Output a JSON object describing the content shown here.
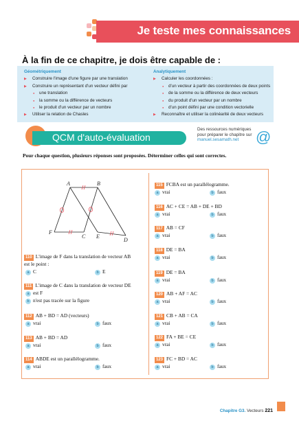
{
  "header": {
    "title": "Je teste mes connaissances",
    "accent": "#e8505b"
  },
  "goals": {
    "title": "À la fin de ce chapitre, je dois être capable de :",
    "col1": {
      "heading": "Géométriquement",
      "items": [
        {
          "text": "Construire l'image d'une figure par une translation",
          "level": 1
        },
        {
          "text": "Construire un représentant d'un vecteur défini par",
          "level": 1
        },
        {
          "text": "une translation",
          "level": 2
        },
        {
          "text": "la somme ou la différence de vecteurs",
          "level": 2
        },
        {
          "text": "le produit d'un vecteur par un nombre",
          "level": 2
        },
        {
          "text": "Utiliser la relation de Chasles",
          "level": 1
        }
      ]
    },
    "col2": {
      "heading": "Analytiquement",
      "items": [
        {
          "text": "Calculer les coordonnées :",
          "level": 1
        },
        {
          "text": "d'un vecteur à partir des coordonnées de deux points",
          "level": 2
        },
        {
          "text": "de la somme ou la différence de deux vecteurs",
          "level": 2
        },
        {
          "text": "du produit d'un vecteur par un nombre",
          "level": 2
        },
        {
          "text": "d'un point défini par une condition vectorielle",
          "level": 2
        },
        {
          "text": "Reconnaître et utiliser la colinéarité de deux vecteurs",
          "level": 1
        }
      ]
    }
  },
  "qcm": {
    "title": "QCM d'auto-évaluation",
    "color": "#20b2a0"
  },
  "resources": {
    "line1": "Des ressources numériques",
    "line2": "pour préparer le chapitre sur",
    "url": "manuel.sesamath.net",
    "icon": "at-icon"
  },
  "instruction": "Pour chaque question, plusieurs réponses sont proposées. Déterminer celles qui sont correctes.",
  "figure": {
    "points": [
      "A",
      "B",
      "F",
      "C",
      "E",
      "D"
    ]
  },
  "questions_left": [
    {
      "num": "110",
      "text": "L'image de F dans la translation de vecteur AB",
      "text2": "est le point :",
      "opt_a": "C",
      "opt_b": "E"
    },
    {
      "num": "111",
      "text": "L'image de C dans la translation de vecteur DE",
      "opt_a": "est F",
      "opt_b": "n'est pas tracée sur la figure"
    },
    {
      "num": "112",
      "text": "AB + BD = AD (vecteurs)",
      "opt_a": "vrai",
      "opt_b": "faux"
    },
    {
      "num": "113",
      "text": "AB + BD = AD",
      "opt_a": "vrai",
      "opt_b": "faux"
    },
    {
      "num": "114",
      "text": "ABDE est un parallélogramme.",
      "opt_a": "vrai",
      "opt_b": "faux"
    }
  ],
  "questions_right": [
    {
      "num": "115",
      "text": "FCBA est un parallélogramme.",
      "opt_a": "vrai",
      "opt_b": "faux"
    },
    {
      "num": "116",
      "text": "AC + CE = AB + DE + BD",
      "opt_a": "vrai",
      "opt_b": "faux"
    },
    {
      "num": "117",
      "text": "AB = CF",
      "opt_a": "vrai",
      "opt_b": "faux"
    },
    {
      "num": "118",
      "text": "DE = BA",
      "opt_a": "vrai",
      "opt_b": "faux"
    },
    {
      "num": "119",
      "text": "DE = BA",
      "opt_a": "vrai",
      "opt_b": "faux"
    },
    {
      "num": "120",
      "text": "AB + AF = AC",
      "opt_a": "vrai",
      "opt_b": "faux"
    },
    {
      "num": "121",
      "text": "CB + AB = CA",
      "opt_a": "vrai",
      "opt_b": "faux"
    },
    {
      "num": "122",
      "text": "FA + BE = CE",
      "opt_a": "vrai",
      "opt_b": "faux"
    },
    {
      "num": "123",
      "text": "FC + BD = AC",
      "opt_a": "vrai",
      "opt_b": "faux"
    }
  ],
  "labels": {
    "a": "a",
    "b": "b"
  },
  "footer": {
    "chapter": "Chapitre G3.",
    "title": "Vecteurs",
    "page": "221"
  }
}
